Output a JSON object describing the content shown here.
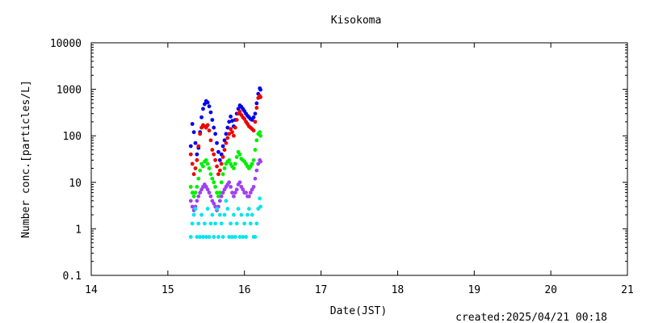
{
  "chart_data": {
    "type": "scatter",
    "title": "Kisokoma",
    "xlabel": "Date(JST)",
    "ylabel": "Number conc.[particles/L]",
    "xlim": [
      14,
      21
    ],
    "ylim": [
      0.1,
      10000
    ],
    "yscale": "log",
    "grid": false,
    "x_ticks": [
      "14",
      "15",
      "16",
      "17",
      "18",
      "19",
      "20",
      "21"
    ],
    "y_ticks": [
      "0.1",
      "1",
      "10",
      "100",
      "1000",
      "10000"
    ],
    "series": [
      {
        "color": "#0000ee",
        "points": [
          [
            15.3,
            60
          ],
          [
            15.32,
            180
          ],
          [
            15.34,
            120
          ],
          [
            15.36,
            70
          ],
          [
            15.38,
            40
          ],
          [
            15.4,
            55
          ],
          [
            15.42,
            120
          ],
          [
            15.44,
            250
          ],
          [
            15.46,
            380
          ],
          [
            15.48,
            480
          ],
          [
            15.5,
            560
          ],
          [
            15.52,
            520
          ],
          [
            15.54,
            430
          ],
          [
            15.56,
            320
          ],
          [
            15.58,
            220
          ],
          [
            15.6,
            150
          ],
          [
            15.62,
            110
          ],
          [
            15.64,
            70
          ],
          [
            15.66,
            45
          ],
          [
            15.68,
            30
          ],
          [
            15.7,
            40
          ],
          [
            15.72,
            60
          ],
          [
            15.74,
            80
          ],
          [
            15.76,
            110
          ],
          [
            15.78,
            150
          ],
          [
            15.8,
            200
          ],
          [
            15.82,
            260
          ],
          [
            15.84,
            210
          ],
          [
            15.86,
            160
          ],
          [
            15.88,
            220
          ],
          [
            15.9,
            300
          ],
          [
            15.92,
            380
          ],
          [
            15.94,
            450
          ],
          [
            15.96,
            420
          ],
          [
            15.98,
            380
          ],
          [
            16.0,
            340
          ],
          [
            16.02,
            300
          ],
          [
            16.04,
            270
          ],
          [
            16.06,
            250
          ],
          [
            16.08,
            230
          ],
          [
            16.1,
            220
          ],
          [
            16.12,
            250
          ],
          [
            16.14,
            300
          ],
          [
            16.16,
            500
          ],
          [
            16.18,
            800
          ],
          [
            16.2,
            1050
          ],
          [
            16.21,
            980
          ]
        ]
      },
      {
        "color": "#ee0000",
        "points": [
          [
            15.3,
            40
          ],
          [
            15.32,
            25
          ],
          [
            15.34,
            15
          ],
          [
            15.36,
            20
          ],
          [
            15.38,
            30
          ],
          [
            15.4,
            60
          ],
          [
            15.42,
            110
          ],
          [
            15.44,
            150
          ],
          [
            15.46,
            170
          ],
          [
            15.48,
            160
          ],
          [
            15.5,
            150
          ],
          [
            15.52,
            170
          ],
          [
            15.54,
            130
          ],
          [
            15.56,
            80
          ],
          [
            15.58,
            50
          ],
          [
            15.6,
            40
          ],
          [
            15.62,
            30
          ],
          [
            15.64,
            22
          ],
          [
            15.66,
            15
          ],
          [
            15.68,
            18
          ],
          [
            15.7,
            25
          ],
          [
            15.72,
            35
          ],
          [
            15.74,
            50
          ],
          [
            15.76,
            70
          ],
          [
            15.78,
            90
          ],
          [
            15.8,
            110
          ],
          [
            15.82,
            140
          ],
          [
            15.84,
            120
          ],
          [
            15.86,
            100
          ],
          [
            15.88,
            150
          ],
          [
            15.9,
            220
          ],
          [
            15.92,
            300
          ],
          [
            15.94,
            330
          ],
          [
            15.96,
            280
          ],
          [
            15.98,
            250
          ],
          [
            16.0,
            230
          ],
          [
            16.02,
            200
          ],
          [
            16.04,
            180
          ],
          [
            16.06,
            160
          ],
          [
            16.08,
            150
          ],
          [
            16.1,
            140
          ],
          [
            16.12,
            130
          ],
          [
            16.14,
            200
          ],
          [
            16.16,
            400
          ],
          [
            16.18,
            650
          ],
          [
            16.2,
            720
          ],
          [
            16.21,
            680
          ]
        ]
      },
      {
        "color": "#00ee00",
        "points": [
          [
            15.3,
            8
          ],
          [
            15.32,
            6
          ],
          [
            15.34,
            5
          ],
          [
            15.36,
            6
          ],
          [
            15.38,
            8
          ],
          [
            15.4,
            12
          ],
          [
            15.42,
            18
          ],
          [
            15.44,
            25
          ],
          [
            15.46,
            22
          ],
          [
            15.48,
            28
          ],
          [
            15.5,
            30
          ],
          [
            15.52,
            25
          ],
          [
            15.54,
            20
          ],
          [
            15.56,
            15
          ],
          [
            15.58,
            12
          ],
          [
            15.6,
            10
          ],
          [
            15.62,
            8
          ],
          [
            15.64,
            6
          ],
          [
            15.66,
            5
          ],
          [
            15.68,
            6
          ],
          [
            15.7,
            10
          ],
          [
            15.72,
            15
          ],
          [
            15.74,
            20
          ],
          [
            15.76,
            25
          ],
          [
            15.78,
            28
          ],
          [
            15.8,
            30
          ],
          [
            15.82,
            25
          ],
          [
            15.84,
            22
          ],
          [
            15.86,
            20
          ],
          [
            15.88,
            25
          ],
          [
            15.9,
            35
          ],
          [
            15.92,
            45
          ],
          [
            15.94,
            40
          ],
          [
            15.96,
            32
          ],
          [
            15.98,
            30
          ],
          [
            16.0,
            28
          ],
          [
            16.02,
            25
          ],
          [
            16.04,
            22
          ],
          [
            16.06,
            20
          ],
          [
            16.08,
            22
          ],
          [
            16.1,
            25
          ],
          [
            16.12,
            30
          ],
          [
            16.14,
            50
          ],
          [
            16.16,
            80
          ],
          [
            16.18,
            110
          ],
          [
            16.2,
            120
          ],
          [
            16.21,
            100
          ]
        ]
      },
      {
        "color": "#a040ee",
        "points": [
          [
            15.3,
            4
          ],
          [
            15.32,
            3
          ],
          [
            15.34,
            2.5
          ],
          [
            15.36,
            3
          ],
          [
            15.38,
            4
          ],
          [
            15.4,
            5
          ],
          [
            15.42,
            6
          ],
          [
            15.44,
            7
          ],
          [
            15.46,
            8
          ],
          [
            15.48,
            9
          ],
          [
            15.5,
            8
          ],
          [
            15.52,
            7
          ],
          [
            15.54,
            6
          ],
          [
            15.56,
            5
          ],
          [
            15.58,
            4
          ],
          [
            15.6,
            3.5
          ],
          [
            15.62,
            3
          ],
          [
            15.64,
            2.5
          ],
          [
            15.66,
            3
          ],
          [
            15.68,
            4
          ],
          [
            15.7,
            5
          ],
          [
            15.72,
            6
          ],
          [
            15.74,
            7
          ],
          [
            15.76,
            8
          ],
          [
            15.78,
            9
          ],
          [
            15.8,
            10
          ],
          [
            15.82,
            8
          ],
          [
            15.84,
            6
          ],
          [
            15.86,
            5
          ],
          [
            15.88,
            6
          ],
          [
            15.9,
            7
          ],
          [
            15.92,
            9
          ],
          [
            15.94,
            10
          ],
          [
            15.96,
            8
          ],
          [
            15.98,
            7
          ],
          [
            16.0,
            6
          ],
          [
            16.02,
            6
          ],
          [
            16.04,
            5
          ],
          [
            16.06,
            5
          ],
          [
            16.08,
            6
          ],
          [
            16.1,
            7
          ],
          [
            16.12,
            8
          ],
          [
            16.14,
            12
          ],
          [
            16.16,
            18
          ],
          [
            16.18,
            25
          ],
          [
            16.2,
            30
          ],
          [
            16.21,
            28
          ]
        ]
      },
      {
        "color": "#00e5ee",
        "points": [
          [
            15.3,
            0.67
          ],
          [
            15.32,
            1.3
          ],
          [
            15.34,
            2
          ],
          [
            15.36,
            2.7
          ],
          [
            15.38,
            0.67
          ],
          [
            15.4,
            1.3
          ],
          [
            15.42,
            0.67
          ],
          [
            15.44,
            2
          ],
          [
            15.46,
            0.67
          ],
          [
            15.48,
            1.3
          ],
          [
            15.5,
            0.67
          ],
          [
            15.52,
            2.7
          ],
          [
            15.54,
            0.67
          ],
          [
            15.56,
            1.3
          ],
          [
            15.58,
            2
          ],
          [
            15.6,
            0.67
          ],
          [
            15.62,
            1.3
          ],
          [
            15.64,
            2.7
          ],
          [
            15.66,
            0.67
          ],
          [
            15.68,
            2
          ],
          [
            15.7,
            1.3
          ],
          [
            15.72,
            0.67
          ],
          [
            15.74,
            2
          ],
          [
            15.76,
            4
          ],
          [
            15.78,
            2.7
          ],
          [
            15.8,
            0.67
          ],
          [
            15.82,
            1.3
          ],
          [
            15.84,
            0.67
          ],
          [
            15.86,
            2
          ],
          [
            15.88,
            0.67
          ],
          [
            15.9,
            1.3
          ],
          [
            15.92,
            2.7
          ],
          [
            15.94,
            0.67
          ],
          [
            15.96,
            2
          ],
          [
            15.98,
            0.67
          ],
          [
            16.0,
            1.3
          ],
          [
            16.02,
            0.67
          ],
          [
            16.04,
            2
          ],
          [
            16.06,
            2.7
          ],
          [
            16.08,
            1.3
          ],
          [
            16.1,
            2
          ],
          [
            16.12,
            0.67
          ],
          [
            16.14,
            0.67
          ],
          [
            16.16,
            1.3
          ],
          [
            16.18,
            2.7
          ],
          [
            16.2,
            4.5
          ],
          [
            16.21,
            3
          ]
        ]
      }
    ]
  },
  "footer": {
    "created": "created:2025/04/21 00:18"
  }
}
